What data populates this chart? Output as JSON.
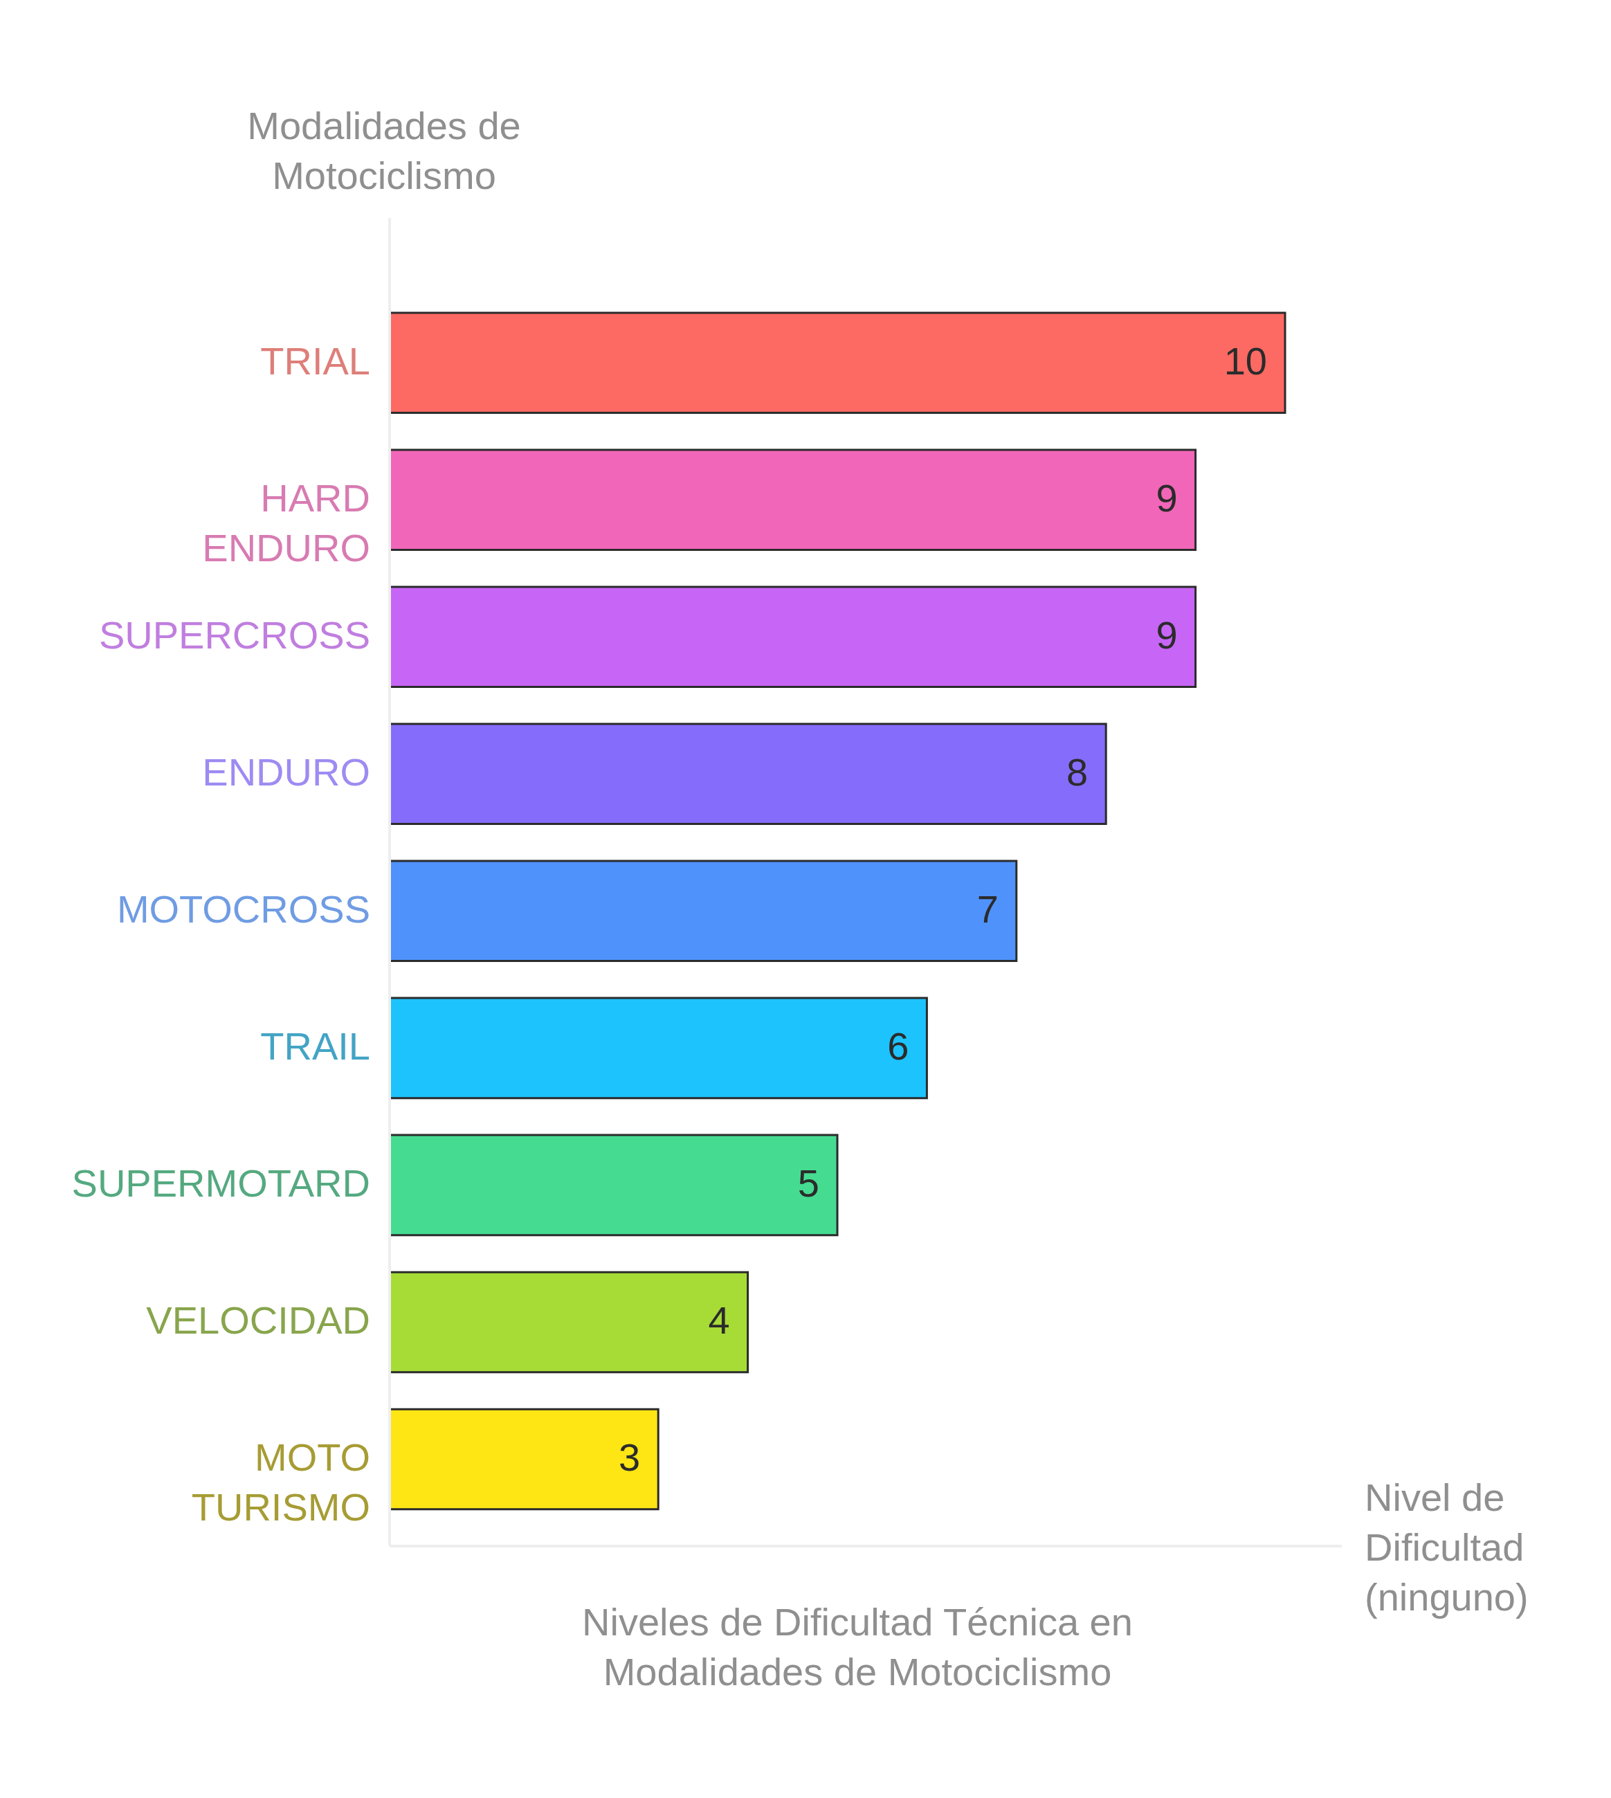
{
  "chart_data": {
    "type": "bar",
    "orientation": "horizontal",
    "title": "Niveles de Dificultad Técnica en Modalidades de Motociclismo",
    "xlabel": "Nivel de Dificultad (ninguno)",
    "ylabel": "Modalidades de Motociclismo",
    "categories": [
      "TRIAL",
      "HARD ENDURO",
      "SUPERCROSS",
      "ENDURO",
      "MOTOCROSS",
      "TRAIL",
      "SUPERMOTARD",
      "VELOCIDAD",
      "MOTO TURISMO"
    ],
    "values": [
      10,
      9,
      9,
      8,
      7,
      6,
      5,
      4,
      3
    ],
    "colors": [
      "#fc6a63",
      "#f266b9",
      "#c766f6",
      "#866cfb",
      "#4f92fc",
      "#1dc3fc",
      "#45dc92",
      "#a7dc37",
      "#fde614"
    ],
    "data_labels": true
  }
}
